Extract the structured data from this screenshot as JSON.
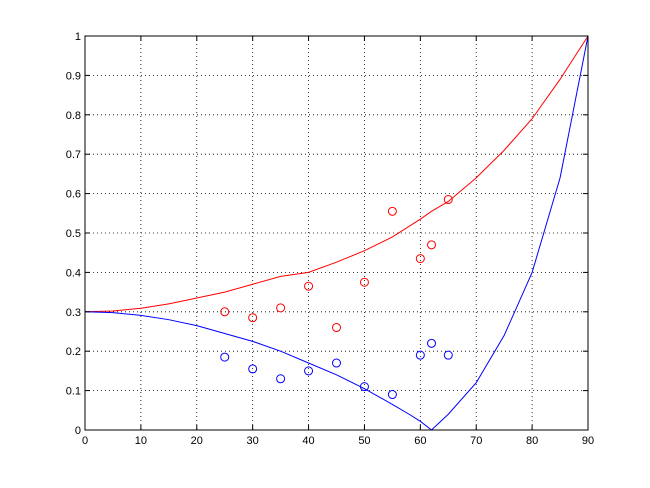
{
  "chart_data": {
    "type": "scatter",
    "title": "",
    "xlabel": "",
    "ylabel": "",
    "xlim": [
      0,
      90
    ],
    "ylim": [
      0,
      1
    ],
    "grid": true,
    "grid_style": "dotted",
    "xticks": [
      0,
      10,
      20,
      30,
      40,
      50,
      60,
      70,
      80,
      90
    ],
    "yticks": [
      0,
      0.1,
      0.2,
      0.3,
      0.4,
      0.5,
      0.6,
      0.7,
      0.8,
      0.9,
      1
    ],
    "xtick_labels": [
      "0",
      "10",
      "20",
      "30",
      "40",
      "50",
      "60",
      "70",
      "80",
      "90"
    ],
    "ytick_labels": [
      "0",
      "0.1",
      "0.2",
      "0.3",
      "0.4",
      "0.5",
      "0.6",
      "0.7",
      "0.8",
      "0.9",
      "1"
    ],
    "colors": {
      "red": "#ff0000",
      "blue": "#0000ff"
    },
    "lines": [
      {
        "color": "#ff0000",
        "x": [
          0,
          5,
          10,
          15,
          20,
          25,
          30,
          35,
          40,
          45,
          50,
          55,
          60,
          62,
          65,
          70,
          75,
          80,
          85,
          90
        ],
        "y": [
          0.3,
          0.302,
          0.309,
          0.32,
          0.335,
          0.35,
          0.37,
          0.39,
          0.4,
          0.426,
          0.455,
          0.49,
          0.535,
          0.555,
          0.58,
          0.64,
          0.71,
          0.79,
          0.89,
          1.0
        ]
      },
      {
        "color": "#0000ff",
        "x": [
          0,
          5,
          10,
          15,
          20,
          25,
          30,
          35,
          40,
          45,
          50,
          55,
          58,
          60,
          62,
          65,
          70,
          75,
          80,
          85,
          90
        ],
        "y": [
          0.3,
          0.298,
          0.291,
          0.28,
          0.265,
          0.245,
          0.225,
          0.2,
          0.17,
          0.14,
          0.105,
          0.065,
          0.04,
          0.022,
          0.0,
          0.04,
          0.12,
          0.24,
          0.4,
          0.64,
          1.0
        ]
      }
    ],
    "series": [
      {
        "color": "#ff0000",
        "marker": "o",
        "x": [
          25,
          30,
          35,
          40,
          45,
          50,
          55,
          60,
          62,
          65
        ],
        "y": [
          0.3,
          0.285,
          0.31,
          0.365,
          0.26,
          0.375,
          0.555,
          0.435,
          0.47,
          0.585
        ]
      },
      {
        "color": "#0000ff",
        "marker": "o",
        "x": [
          25,
          30,
          35,
          40,
          45,
          50,
          55,
          60,
          62,
          65
        ],
        "y": [
          0.185,
          0.155,
          0.13,
          0.15,
          0.17,
          0.11,
          0.09,
          0.19,
          0.22,
          0.19
        ]
      }
    ]
  }
}
